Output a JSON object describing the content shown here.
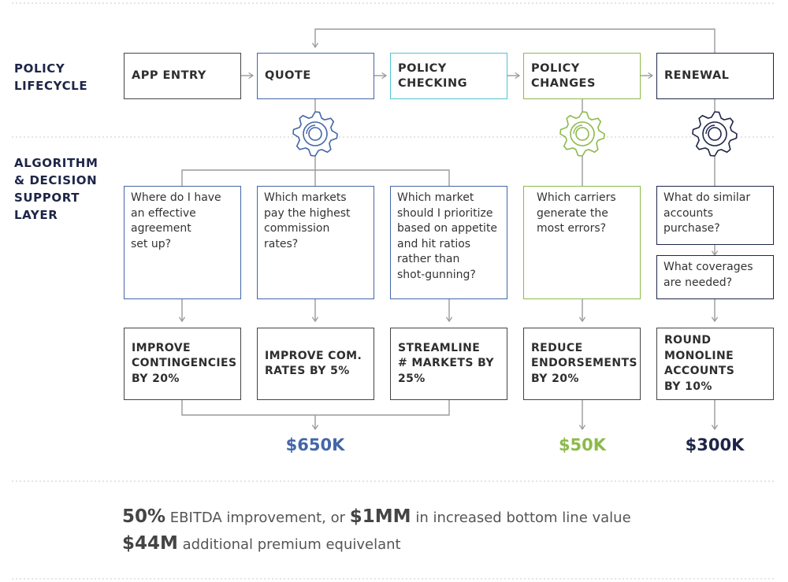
{
  "layers": {
    "lifecycle_label": "POLICY\nLIFECYCLE",
    "algorithm_label": "ALGORITHM\n& DECISION\nSUPPORT\nLAYER"
  },
  "stages": [
    {
      "label": "APP ENTRY"
    },
    {
      "label": "QUOTE"
    },
    {
      "label": "POLICY\nCHECKING"
    },
    {
      "label": "POLICY\nCHANGES"
    },
    {
      "label": "RENEWAL"
    }
  ],
  "questions": [
    {
      "text": "Where do I have\nan effective\nagreement\nset up?"
    },
    {
      "text": "Which markets\npay the highest\ncommission\nrates?"
    },
    {
      "text": "Which market\nshould I prioritize\nbased on appetite\nand hit ratios\nrather than\nshot-gunning?"
    },
    {
      "text": "Which carriers\ngenerate the\nmost errors?"
    },
    {
      "text": "What do similar\naccounts\npurchase?"
    },
    {
      "text": "What coverages\nare needed?"
    }
  ],
  "outcomes": [
    {
      "text": "IMPROVE\nCONTINGENCIES\nBY 20%"
    },
    {
      "text": "IMPROVE COM.\nRATES BY 5%"
    },
    {
      "text": "STREAMLINE\n# MARKETS BY\n25%"
    },
    {
      "text": "REDUCE\nENDORSEMENTS\nBY 20%"
    },
    {
      "text": "ROUND\nMONOLINE\nACCOUNTS\nBY 10%"
    }
  ],
  "totals": [
    {
      "value": "$650K",
      "color": "#4466a8"
    },
    {
      "value": "$50K",
      "color": "#8cba4b"
    },
    {
      "value": "$300K",
      "color": "#1d2548"
    }
  ],
  "summary": {
    "line1_value1": "50%",
    "line1_text1": "EBITDA improvement, or",
    "line1_value2": "$1MM",
    "line1_text2": "in increased bottom line value",
    "line2_value": "$44M",
    "line2_text": "additional premium equivelant"
  },
  "colors": {
    "blue": "#4466a8",
    "teal": "#4fc4d1",
    "green": "#8cba4b",
    "navy": "#1d2548",
    "dark": "#444444",
    "connector": "#9a9a9a"
  },
  "icons": [
    "gear-icon",
    "gear-icon",
    "gear-icon"
  ]
}
